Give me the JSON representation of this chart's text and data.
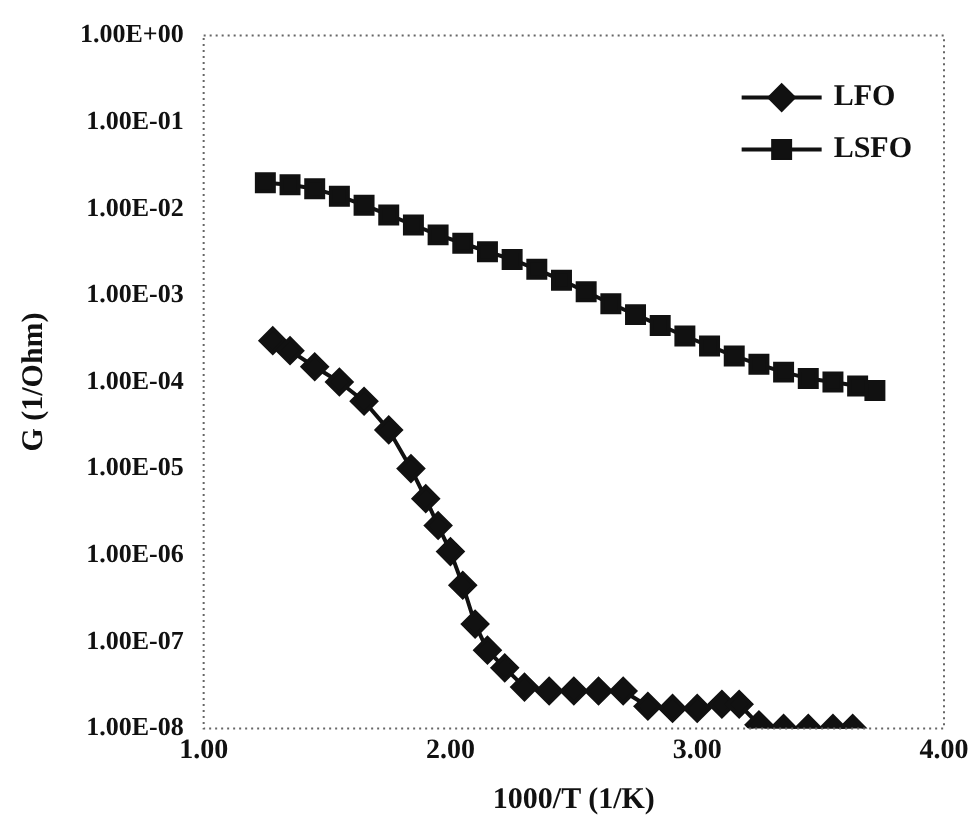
{
  "chart_data": {
    "type": "line",
    "xlabel": "1000/T (1/K)",
    "ylabel": "G (1/Ohm)",
    "xlim": [
      1,
      4
    ],
    "xticks": [
      {
        "value": 1,
        "label": "1.00"
      },
      {
        "value": 2,
        "label": "2.00"
      },
      {
        "value": 3,
        "label": "3.00"
      },
      {
        "value": 4,
        "label": "4.00"
      }
    ],
    "ylim": [
      1e-08,
      1
    ],
    "log": "y",
    "yticks": [
      {
        "value": 1e-08,
        "label": "1.00E-08"
      },
      {
        "value": 1e-07,
        "label": "1.00E-07"
      },
      {
        "value": 1e-06,
        "label": "1.00E-06"
      },
      {
        "value": 1e-05,
        "label": "1.00E-05"
      },
      {
        "value": 0.0001,
        "label": "1.00E-04"
      },
      {
        "value": 0.001,
        "label": "1.00E-03"
      },
      {
        "value": 0.01,
        "label": "1.00E-02"
      },
      {
        "value": 0.1,
        "label": "1.00E-01"
      },
      {
        "value": 1,
        "label": "1.00E+00"
      }
    ],
    "grid": false,
    "legend": "top right",
    "line_style": "solid",
    "series": [
      {
        "name": "LFO",
        "color": "#111111",
        "marker": "diamond",
        "x": [
          1.28,
          1.35,
          1.45,
          1.55,
          1.65,
          1.75,
          1.84,
          1.9,
          1.95,
          2.0,
          2.05,
          2.1,
          2.15,
          2.22,
          2.3,
          2.4,
          2.5,
          2.6,
          2.7,
          2.8,
          2.9,
          3.0,
          3.1,
          3.17,
          3.25,
          3.35,
          3.45,
          3.55,
          3.63
        ],
        "values": [
          0.0003,
          0.00023,
          0.00015,
          0.0001,
          6e-05,
          2.8e-05,
          1e-05,
          4.5e-06,
          2.2e-06,
          1.1e-06,
          4.5e-07,
          1.6e-07,
          8e-08,
          5e-08,
          3e-08,
          2.7e-08,
          2.7e-08,
          2.7e-08,
          2.7e-08,
          1.8e-08,
          1.7e-08,
          1.7e-08,
          1.9e-08,
          1.9e-08,
          1.1e-08,
          1e-08,
          1e-08,
          1e-08,
          1e-08
        ]
      },
      {
        "name": "LSFO",
        "color": "#111111",
        "marker": "square",
        "x": [
          1.25,
          1.35,
          1.45,
          1.55,
          1.65,
          1.75,
          1.85,
          1.95,
          2.05,
          2.15,
          2.25,
          2.35,
          2.45,
          2.55,
          2.65,
          2.75,
          2.85,
          2.95,
          3.05,
          3.15,
          3.25,
          3.35,
          3.45,
          3.55,
          3.65,
          3.72
        ],
        "values": [
          0.02,
          0.019,
          0.017,
          0.014,
          0.011,
          0.0085,
          0.0065,
          0.005,
          0.004,
          0.0032,
          0.0026,
          0.002,
          0.0015,
          0.0011,
          0.0008,
          0.0006,
          0.00045,
          0.00034,
          0.00026,
          0.0002,
          0.00016,
          0.00013,
          0.00011,
          0.0001,
          9e-05,
          8e-05
        ]
      }
    ]
  }
}
